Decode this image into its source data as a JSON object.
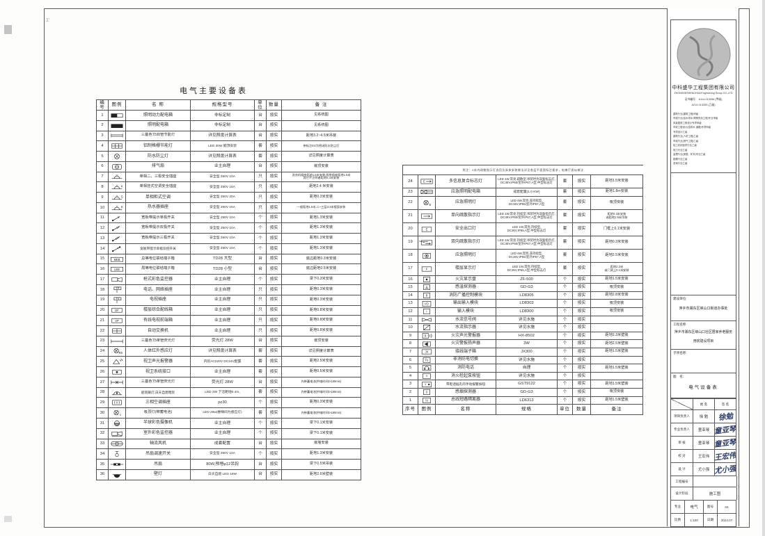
{
  "style": {
    "ink": "#333333",
    "line": "#4f4f4f",
    "signature_ink": "#2c3a66",
    "logo_fill": "#bdbdbd"
  },
  "left_table": {
    "title": "电气主要设备表",
    "headers": [
      "编号",
      "图例",
      "名  称",
      "规格型号",
      "单位",
      "数量",
      "备  注"
    ],
    "rows": [
      {
        "no": "1",
        "icon": "box-half",
        "name": "照明动力配电箱",
        "spec": "非标定制",
        "unit": "台",
        "qty": "按实",
        "remark": "见系统图"
      },
      {
        "no": "2",
        "icon": "box-solid",
        "name": "照明配电箱",
        "spec": "非标定制",
        "unit": "台",
        "qty": "按实",
        "remark": "见系统图"
      },
      {
        "no": "3",
        "icon": "tube2",
        "name": "三基色T5双管节能灯",
        "spec": "详见照度计算表",
        "unit": "台",
        "qty": "按实",
        "remark": "距地3.2~4.5米吊装"
      },
      {
        "no": "4",
        "icon": "grid",
        "name": "铝制格栅节能灯",
        "spec": "LED 30W 嵌顶安装",
        "unit": "套",
        "qty": "按实",
        "remark": "带标注EX为密闭防水防尘灯"
      },
      {
        "no": "5",
        "icon": "ring-x",
        "name": "防水防尘灯",
        "spec": "详见照度计算表",
        "unit": "套",
        "qty": "按实",
        "remark": "详见照度计算表"
      },
      {
        "no": "6",
        "icon": "fan-box",
        "name": "排气扇",
        "spec": "业主自理",
        "unit": "台",
        "qty": "按实",
        "remark": "嵌顶安装"
      },
      {
        "no": "7",
        "icon": "socket",
        "name": "单相二、三极安全插座",
        "spec": "安全型 250V 10A",
        "unit": "只",
        "qty": "按实",
        "remark": "洗衣机插座距地1.6米安装,厨房插座距地1.5米|其它不注明者距地0.3米安装"
      },
      {
        "no": "8",
        "icon": "socket-k",
        "name": "单相挂式空调安全插座",
        "spec": "安全型 250V 16A",
        "unit": "只",
        "qty": "按实",
        "remark": "距地2.4 米安装"
      },
      {
        "no": "9",
        "icon": "socket-g",
        "name": "单相柜式空调",
        "spec": "安全型 250V 20A",
        "unit": "只",
        "qty": "按实",
        "remark": "距地0.3米安装"
      },
      {
        "no": "10",
        "icon": "socket-r",
        "name": "热水器插座",
        "spec": "安全型 250V 16A",
        "unit": "只",
        "qty": "按实",
        "remark": "一般距地1.5米,二~三层3.3米楼面安装"
      },
      {
        "no": "11",
        "icon": "switch-1",
        "name": "宽板带提示单极开关",
        "spec": "安全型 250V 10A",
        "unit": "个",
        "qty": "按实",
        "remark": "距地1.3米安装"
      },
      {
        "no": "12",
        "icon": "switch-2",
        "name": "宽板带提示双极开关",
        "spec": "安全型 250V 10A",
        "unit": "个",
        "qty": "按实",
        "remark": "距地1.3米安装"
      },
      {
        "no": "13",
        "icon": "switch-3",
        "name": "宽板带提示三极开关",
        "spec": "安全型 250V 10A",
        "unit": "个",
        "qty": "按实",
        "remark": "距地1.3米安装"
      },
      {
        "no": "14",
        "icon": "switch-1d",
        "name": "宽板带提示单极双控开关",
        "spec": "安全型 250V 10A",
        "unit": "个",
        "qty": "按实",
        "remark": "距地1.3米安装"
      },
      {
        "no": "15",
        "icon": "box-meb",
        "name": "总等电位联结端子箱",
        "spec": "TD28 大型",
        "unit": "台",
        "qty": "按实",
        "remark": "底边距地0.3米安装"
      },
      {
        "no": "16",
        "icon": "box-leb",
        "name": "局等电位联结端子箱",
        "spec": "TD28 小型",
        "unit": "台",
        "qty": "按实",
        "remark": "底边距地0.5米安装"
      },
      {
        "no": "17",
        "icon": "camera",
        "name": "枪式彩色监控器",
        "spec": "业主自理",
        "unit": "个",
        "qty": "按实",
        "remark": "梁下0.3米安装"
      },
      {
        "no": "18",
        "icon": "pole-tp",
        "name": "电话、网络插座",
        "spec": "业主自理",
        "unit": "只",
        "qty": "按实",
        "remark": "距地0.3米安装"
      },
      {
        "no": "19",
        "icon": "pole-tv",
        "name": "电视插座",
        "spec": "业主自理",
        "unit": "只",
        "qty": "按实",
        "remark": "距地0.3米安装"
      },
      {
        "no": "20",
        "icon": "box-df",
        "name": "楼层综合配线箱",
        "spec": "业主自理",
        "unit": "只",
        "qty": "按实",
        "remark": "距地0.8米安装"
      },
      {
        "no": "21",
        "icon": "box-vp",
        "name": "有线电视前端箱",
        "spec": "业主自理",
        "unit": "只",
        "qty": "按实",
        "remark": "距地0.8米安装"
      },
      {
        "no": "22",
        "icon": "box-plus",
        "name": "自动交换机",
        "spec": "业主自理",
        "unit": "只",
        "qty": "按实",
        "remark": "距地0.8米安装"
      },
      {
        "no": "23",
        "icon": "tube1",
        "name": "三基色T5单管荧光灯",
        "spec": "荧光灯 28W",
        "unit": "台",
        "qty": "按实",
        "remark": "嵌顶安装"
      },
      {
        "no": "24",
        "icon": "circle-x-sub",
        "name": "人体红外感应灯",
        "spec": "详见照度计算表",
        "unit": "套",
        "qty": "按实",
        "remark": "详见照度计算表"
      },
      {
        "no": "25",
        "icon": "alarm",
        "name": "视卫声光报警器",
        "spec": "内装AC220V DC24V配置",
        "unit": "套",
        "qty": "按实",
        "remark": "距地2.5米安装"
      },
      {
        "no": "26",
        "icon": "access",
        "name": "视卫系统接口",
        "spec": "业主自理",
        "unit": "套",
        "qty": "按实",
        "remark": "距地0.5米安装"
      },
      {
        "no": "27",
        "icon": "tube1e",
        "name": "三基色T5单管荧光灯",
        "spec": "荧光灯 28W",
        "unit": "台",
        "qty": "按实",
        "remark": "内带蓄电池(供电时间t>180min)"
      },
      {
        "no": "28",
        "icon": "footlight",
        "name": "嵌装脚灯,白天自熄暗装",
        "spec": "LED 2W 下沿距地0.4m,",
        "unit": "套",
        "qty": "按实",
        "remark": "内带蓄电池(供电时间t>180min)"
      },
      {
        "no": "29",
        "icon": "socket3",
        "name": "三相空调插座",
        "spec": "pz30",
        "unit": "个",
        "qty": "按实",
        "remark": "距地0.3米安装"
      },
      {
        "no": "30",
        "icon": "circle-x-c",
        "name": "吸顶灯(带蓄电池)",
        "spec": "LED 28w(楼梯间为感应灯)",
        "unit": "套",
        "qty": "按实",
        "remark": "内带蓄电池(供电时间t>180min)"
      },
      {
        "no": "31",
        "icon": "dome",
        "name": "半球彩色摄像机",
        "spec": "业主自理",
        "unit": "个",
        "qty": "按实",
        "remark": "梁下0.1米安装"
      },
      {
        "no": "32",
        "icon": "camera2",
        "name": "室外彩色监控器",
        "spec": "业主自理",
        "unit": "个",
        "qty": "按实",
        "remark": "梁下0.1米安装"
      },
      {
        "no": "33",
        "icon": "axfan",
        "name": "轴流风机",
        "spec": "成套配置",
        "unit": "台",
        "qty": "按实",
        "remark": "嵌墙安装"
      },
      {
        "no": "34",
        "icon": "fansw",
        "name": "吊扇调速开关",
        "spec": "安全型 250V 10A",
        "unit": "个",
        "qty": "按实",
        "remark": "距地1.3米安装"
      },
      {
        "no": "35",
        "icon": "cfan",
        "name": "吊扇",
        "spec": "80W,预埋φ12吊钩",
        "unit": "台",
        "qty": "按实",
        "remark": "梁下0.5米吊装"
      },
      {
        "no": "36",
        "icon": "walllamp",
        "name": "壁灯",
        "spec": "白天自熄 LED 16W",
        "unit": "台",
        "qty": "按实",
        "remark": "距地2.6米壁装"
      }
    ]
  },
  "middle_table": {
    "note": "附注：3米内疏散指示灯选用及具体安装做法详见各层平面图标注要求，电梯厅类似做法",
    "headers": [
      "序号",
      "图例",
      "名称",
      "规格",
      "单位",
      "数量",
      "备注"
    ],
    "rows": [
      {
        "no": "24",
        "icon": "m-exit-multi",
        "name": "多信息复合标志灯",
        "spec": "LED 1W,常亮,疏散型,吊装时为双面标志灯,|DC36V,IP65/室外IP67,A型,中型标志灯",
        "unit": "套",
        "qty": "按实",
        "remark": "距地1.5米安装"
      },
      {
        "no": "23",
        "icon": "m-embox",
        "name": "应急照明配电箱",
        "spec": "成套配置(1.0 KW)",
        "unit": "套",
        "qty": "按实",
        "remark": "距地1.8m安装"
      },
      {
        "no": "22",
        "icon": "m-circle-x-e",
        "name": "应急照明灯",
        "spec": "LED 6W,常亮,非持续型,|DC36V,IP65/室外IP67,A型",
        "unit": "套",
        "qty": "按实",
        "remark": "吸顶安装"
      },
      {
        "no": "21",
        "icon": "m-arrow-1",
        "name": "单向疏散指示灯",
        "spec": "LED 1W,常亮,持续型,吊装时为双面指示灯,|DC36V,IP65/室外IP67,A型,中型标志灯",
        "unit": "套",
        "qty": "按实",
        "remark": "距地0.3米安装|或距地2.5米吊装"
      },
      {
        "no": "20",
        "icon": "m-exit",
        "name": "安全出口灯",
        "spec": "LED 1W,常亮,持续型,|DC36V,IP65,A型,中型标志灯",
        "unit": "套",
        "qty": "按实",
        "remark": "门框上0.1米安装"
      },
      {
        "no": "19",
        "icon": "m-arrow-2",
        "name": "双向疏散指示灯",
        "spec": "LED 1W,常亮,持续型,吊装时为双面指示灯,|DC36V,IP65/室外IP67,A型,中型标志灯",
        "unit": "套",
        "qty": "按实",
        "remark": "距地0.3米安装"
      },
      {
        "no": "18",
        "icon": "m-ceil-em",
        "name": "应急照明灯",
        "spec": "LED 6W,常亮,非持续型,|DC36V,IP65/室外IP67,A型",
        "unit": "套",
        "qty": "按实",
        "remark": "距地2.5米安装"
      },
      {
        "no": "17",
        "icon": "m-floor",
        "name": "楼层显示灯",
        "spec": "LED 1W,常亮,持续型,|DC36V,IP65,A型,中型标志灯",
        "unit": "套",
        "qty": "按实",
        "remark": "距地2.3米|或门洞上0.1米安装"
      },
      {
        "no": "16",
        "icon": "m-sq-o",
        "name": "火灾显示盘",
        "spec": "ZF-500",
        "unit": "个",
        "qty": "按实",
        "remark": "距地1.5米安装"
      },
      {
        "no": "15",
        "icon": "m-sq-temp",
        "name": "感温探测器",
        "spec": "GD-G3",
        "unit": "个",
        "qty": "按实",
        "remark": "吸顶安装"
      },
      {
        "no": "14",
        "icon": "m-sq-bc",
        "name": "消防广播控制模块",
        "spec": "LD8305",
        "unit": "个",
        "qty": "按实",
        "remark": "距地2.8米安装"
      },
      {
        "no": "13",
        "icon": "m-sq-io",
        "name": "输出输入模块",
        "spec": "LD8303",
        "unit": "个",
        "qty": "按实",
        "remark": "吸顶安装"
      },
      {
        "no": "12",
        "icon": "m-sq-i",
        "name": "输入模块",
        "spec": "LD8300",
        "unit": "个",
        "qty": "按实",
        "remark": "吸顶安装"
      },
      {
        "no": "11",
        "icon": "m-valve",
        "name": "水流信号阀",
        "spec": "详见水施",
        "unit": "个",
        "qty": "按实",
        "remark": ""
      },
      {
        "no": "10",
        "icon": "m-flow",
        "name": "水流指示器",
        "spec": "详见水施",
        "unit": "个",
        "qty": "按实",
        "remark": ""
      },
      {
        "no": "9",
        "icon": "m-sl",
        "name": "火灾声光警报器",
        "spec": "HX-8502",
        "unit": "个",
        "qty": "按实",
        "remark": "距地2.3米壁装"
      },
      {
        "no": "8",
        "icon": "m-spk",
        "name": "火灾警报扬声器",
        "spec": "3W",
        "unit": "个",
        "qty": "按实",
        "remark": "距地2.5米壁装"
      },
      {
        "no": "7",
        "icon": "m-jx",
        "name": "接线端子箱",
        "spec": "JX300",
        "unit": "个",
        "qty": "按实",
        "remark": "距地1.5米壁装"
      },
      {
        "no": "6",
        "icon": "m-fs",
        "name": "非消防电切换",
        "spec": "详见水施",
        "unit": "个",
        "qty": "按实",
        "remark": ""
      },
      {
        "no": "5",
        "icon": "m-phone",
        "name": "消防电话",
        "spec": "自理",
        "unit": "个",
        "qty": "按实",
        "remark": "距地1.5米壁装"
      },
      {
        "no": "4",
        "icon": "m-hydrant",
        "name": "消火栓起泵按钮",
        "spec": "详见水施",
        "unit": "个",
        "qty": "按实",
        "remark": ""
      },
      {
        "no": "3",
        "icon": "m-manual",
        "name": "带电话插孔的手动报警按钮",
        "spec": "GST9122",
        "unit": "个",
        "qty": "按实",
        "remark": "距地1.5米壁装"
      },
      {
        "no": "2",
        "icon": "m-smoke",
        "name": "感烟探测器",
        "spec": "GD-G3",
        "unit": "个",
        "qty": "按实",
        "remark": "吸顶安装"
      },
      {
        "no": "1",
        "icon": "m-iso",
        "name": "总线短路隔离器",
        "spec": "LD6313",
        "unit": "个",
        "qty": "按实",
        "remark": "距地1.5米壁装"
      }
    ]
  },
  "title_block": {
    "company_cn": "中科盛华工程集团有限公司",
    "company_en": "ZHONGKESHENGHUA Engineering Group CO.,LTD",
    "cert_line1": "证书编号：  A114-013266 (甲级)",
    "cert_line2": "A214-013263 (乙级)",
    "qualifications": [
      "建筑行业(建筑工程)甲级",
      "市政行业(给水排水 照明亮化工程)专业甲级",
      "风景园林工程设计专项甲级",
      "市政工程设计(给排水 道路)专项甲级",
      "专项设计乙级",
      "建筑行业(人防工程)乙级",
      "市政行业(燃气工程)乙级",
      "轻工纺织医药行业乙级",
      "电力行业乙级",
      "监理行业(房屋、矿井)专业乙级",
      "勘察行业乙级",
      "咨询行业乙级"
    ],
    "client_label": "建设单位:",
    "client": "萍乡市湘东区峡山口街道办事处",
    "project_label": "工程名称:",
    "project_line1": "萍乡市湘东区峡山口社区居家养老服务",
    "project_line2": "用房建设项目",
    "subitem_label": "子项名称:",
    "drawing_label": "图　名:",
    "drawing_name": "电气设备表",
    "sig_table": {
      "name_col": "姓 名",
      "sign_col": "签 名",
      "rows": [
        {
          "role": "项目负责人",
          "name": "徐 勉",
          "sig": "徐勉"
        },
        {
          "role": "专业负责人",
          "name": "童亚琴",
          "sig": "童亚琴"
        },
        {
          "role": "审  核",
          "name": "童亚琴",
          "sig": "童亚琴"
        },
        {
          "role": "校  对",
          "name": "王宏伟",
          "sig": "王宏伟"
        },
        {
          "role": "设  计",
          "name": "尤小强",
          "sig": "尤小强"
        }
      ],
      "project_no_label": "工程编号",
      "project_no": "",
      "stage_label": "设计阶段",
      "stage": "施工图",
      "discipline_label": "专业",
      "discipline": "电气",
      "sheet_no_label": "图号",
      "sheet_no": "04",
      "scale_label": "比例",
      "scale": "1:100",
      "date_label": "日期",
      "date": "2024.07"
    }
  }
}
